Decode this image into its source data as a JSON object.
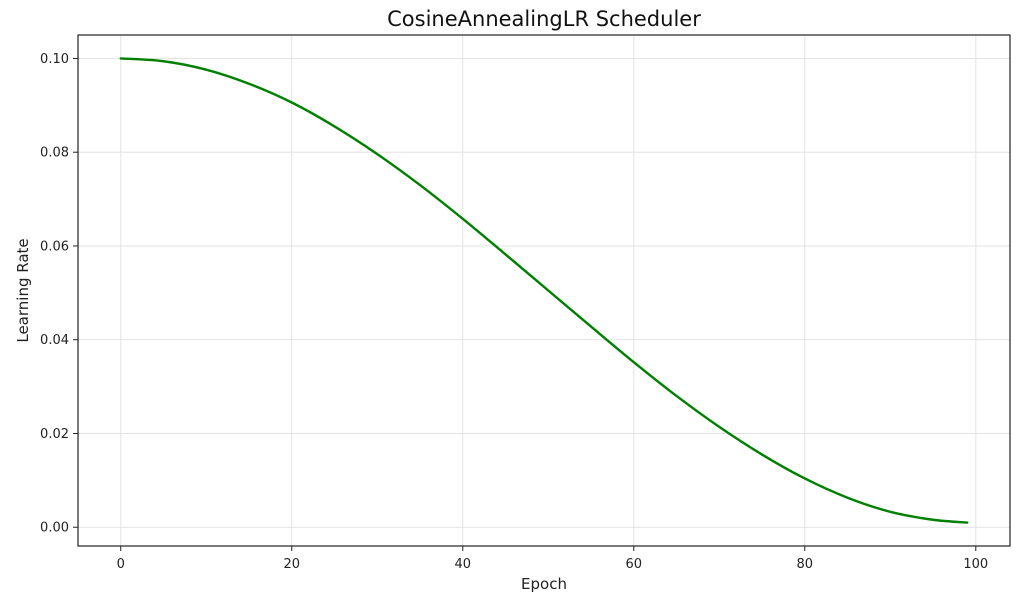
{
  "chart_data": {
    "type": "line",
    "title": "CosineAnnealingLR Scheduler",
    "xlabel": "Epoch",
    "ylabel": "Learning Rate",
    "xlim": [
      -5,
      104
    ],
    "ylim": [
      -0.004,
      0.105
    ],
    "xticks": [
      0,
      20,
      40,
      60,
      80,
      100
    ],
    "xtick_labels": [
      "0",
      "20",
      "40",
      "60",
      "80",
      "100"
    ],
    "yticks": [
      0.0,
      0.02,
      0.04,
      0.06,
      0.08,
      0.1
    ],
    "ytick_labels": [
      "0.00",
      "0.02",
      "0.04",
      "0.06",
      "0.08",
      "0.10"
    ],
    "grid": true,
    "series": [
      {
        "color": "#008000",
        "x": [
          0,
          5,
          10,
          15,
          20,
          25,
          30,
          35,
          40,
          45,
          50,
          55,
          60,
          65,
          70,
          75,
          80,
          85,
          90,
          95,
          99
        ],
        "y": [
          0.1,
          0.0994,
          0.0976,
          0.0946,
          0.0906,
          0.0855,
          0.0796,
          0.073,
          0.0658,
          0.0582,
          0.0505,
          0.0428,
          0.0352,
          0.028,
          0.0214,
          0.0155,
          0.0104,
          0.0063,
          0.0033,
          0.0016,
          0.001
        ]
      }
    ]
  }
}
